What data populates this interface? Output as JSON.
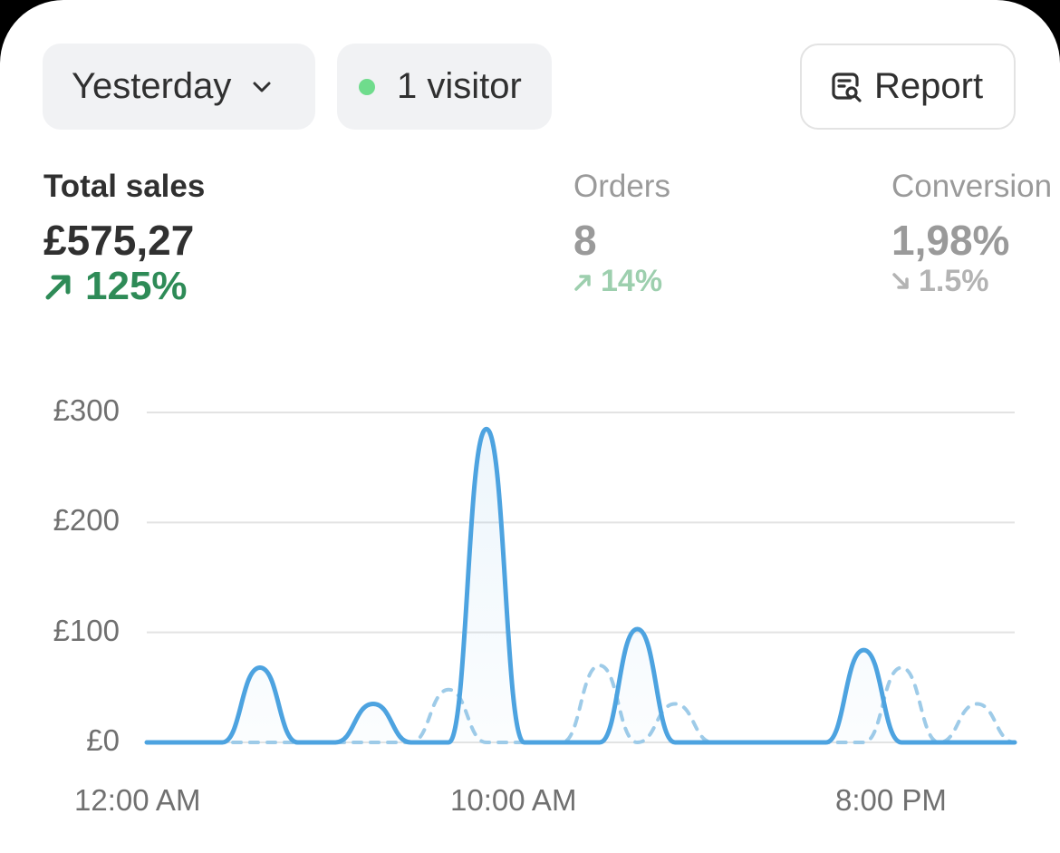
{
  "filters": {
    "date_label": "Yesterday",
    "visitors_label": "1 visitor",
    "live_dot_color": "#6fdc8c",
    "chevron_icon": "chevron-down-icon"
  },
  "report_button": {
    "label": "Report",
    "icon": "report-search-icon"
  },
  "metrics": [
    {
      "label": "Total sales",
      "value": "£575,27",
      "delta": "125%",
      "direction": "up",
      "color": "#2e8b57"
    },
    {
      "label": "Orders",
      "value": "8",
      "delta": "14%",
      "direction": "up",
      "color": "#9dcfae"
    },
    {
      "label": "Conversion",
      "value": "1,98%",
      "delta": "1.5%",
      "direction": "down",
      "color": "#b3b3b3"
    }
  ],
  "chart_data": {
    "type": "line",
    "ylim": [
      0,
      300
    ],
    "y_ticks": [
      "£0",
      "£100",
      "£200",
      "£300"
    ],
    "x_ticks": [
      "12:00 AM",
      "10:00 AM",
      "8:00 PM"
    ],
    "x": [
      0,
      1,
      2,
      3,
      4,
      5,
      6,
      7,
      8,
      9,
      10,
      11,
      12,
      13,
      14,
      15,
      16,
      17,
      18,
      19,
      20,
      21,
      22,
      23
    ],
    "series": [
      {
        "style": "solid",
        "color": "#4da3e0",
        "values": [
          0,
          0,
          0,
          68,
          0,
          0,
          35,
          0,
          0,
          285,
          0,
          0,
          0,
          103,
          0,
          0,
          0,
          0,
          0,
          84,
          0,
          0,
          0,
          0
        ]
      },
      {
        "style": "dashed",
        "color": "#9ecbe8",
        "values": [
          0,
          0,
          0,
          0,
          0,
          0,
          0,
          0,
          48,
          0,
          0,
          0,
          70,
          0,
          35,
          0,
          0,
          0,
          0,
          0,
          68,
          0,
          35,
          0
        ]
      }
    ]
  }
}
